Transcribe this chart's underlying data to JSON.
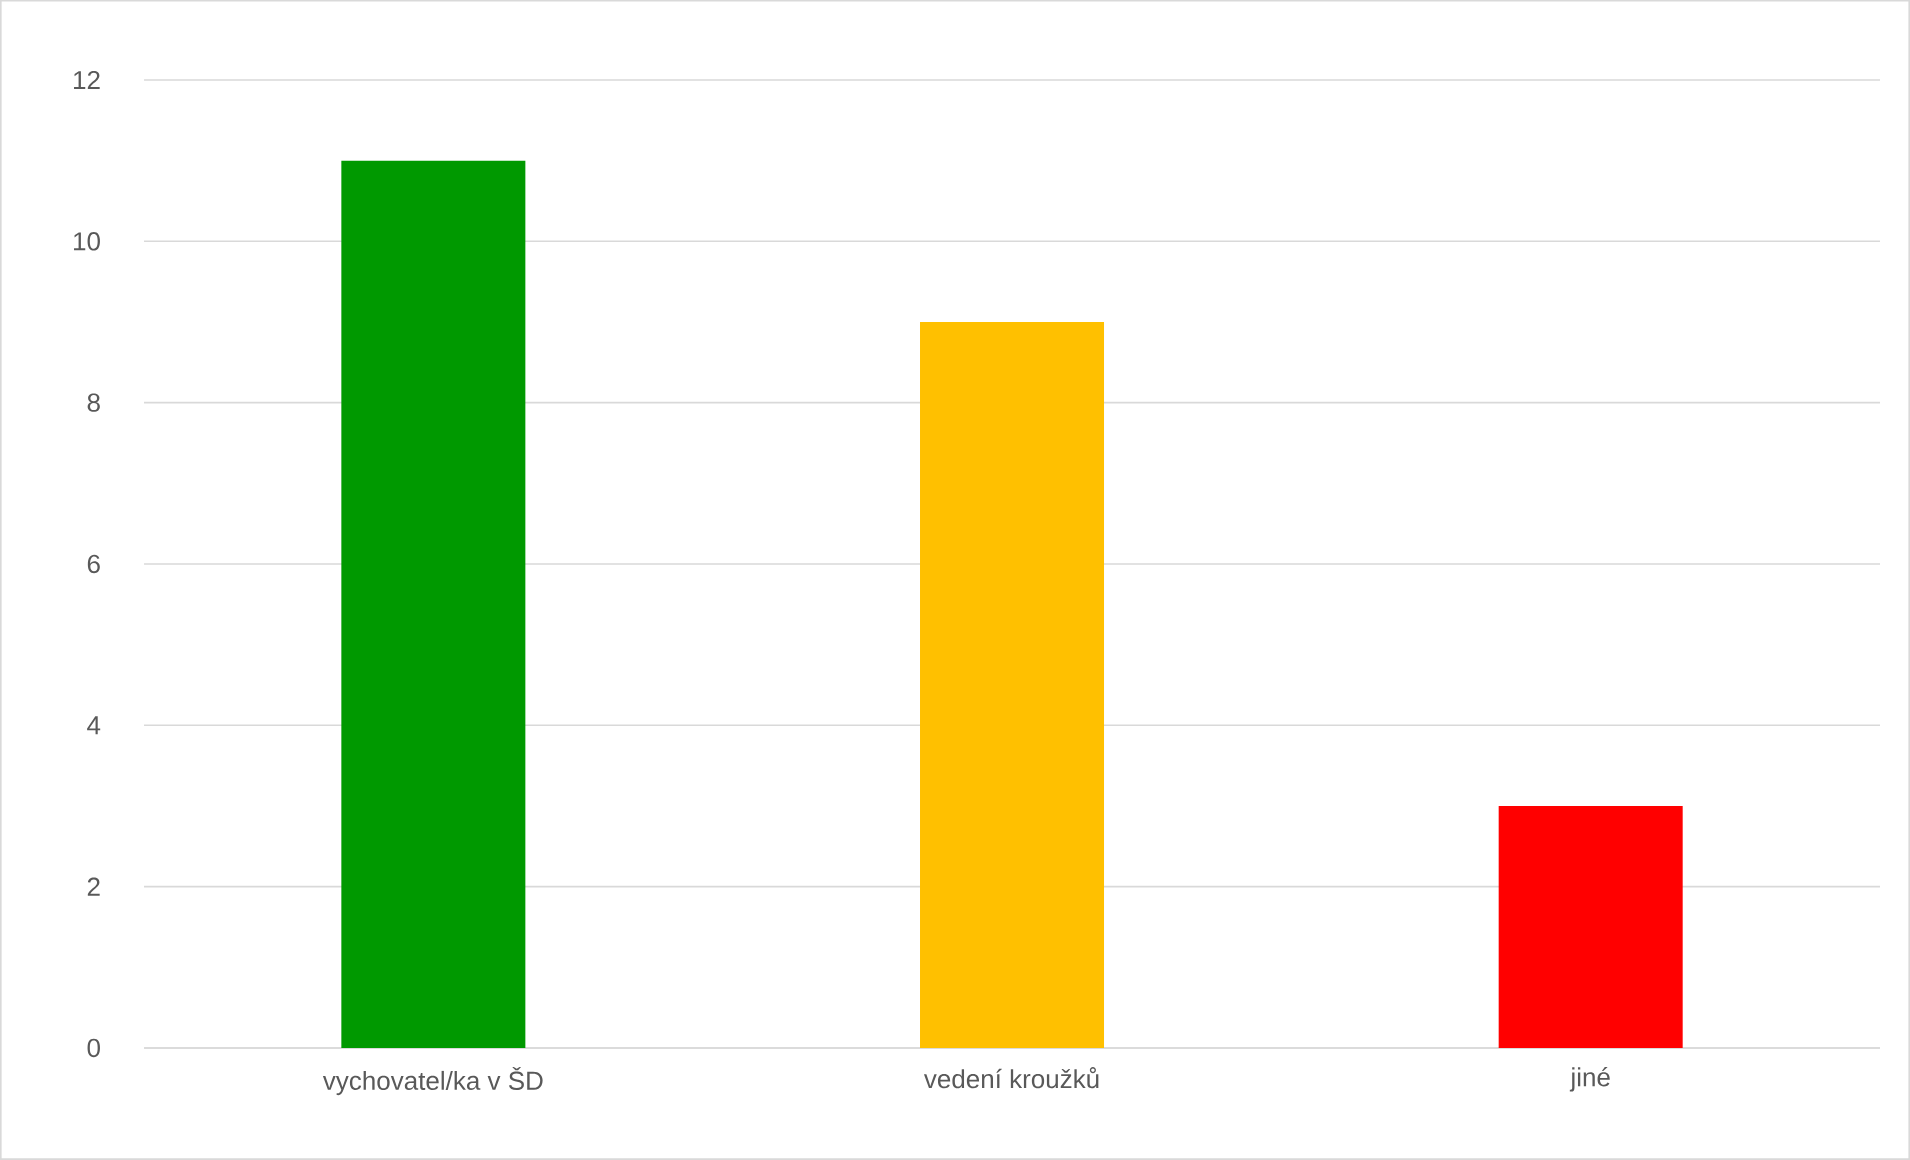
{
  "chart_data": {
    "type": "bar",
    "categories": [
      "vychovatel/ka v ŠD",
      "vedení kroužků",
      "jiné"
    ],
    "values": [
      11,
      9,
      3
    ],
    "colors": [
      "#009900",
      "#ffc000",
      "#ff0000"
    ],
    "ylim": [
      0,
      12
    ],
    "yticks": [
      0,
      2,
      4,
      6,
      8,
      10,
      12
    ],
    "grid": "y"
  }
}
